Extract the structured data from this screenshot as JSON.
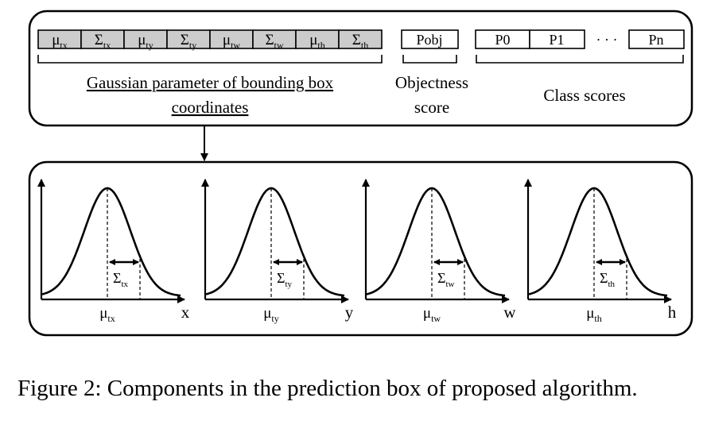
{
  "vector": {
    "cells": [
      {
        "sym": "μ",
        "sub": "tx"
      },
      {
        "sym": "Σ",
        "sub": "tx"
      },
      {
        "sym": "μ",
        "sub": "ty"
      },
      {
        "sym": "Σ",
        "sub": "ty"
      },
      {
        "sym": "μ",
        "sub": "tw"
      },
      {
        "sym": "Σ",
        "sub": "tw"
      },
      {
        "sym": "μ",
        "sub": "th"
      },
      {
        "sym": "Σ",
        "sub": "th"
      }
    ],
    "objectness_cell": "Pobj",
    "class_cells": [
      "P0",
      "P1",
      "Pn"
    ],
    "ellipsis": "· · ·",
    "cell_fill": "#cccccc"
  },
  "labels": {
    "gaussian_line1": "Gaussian parameter of bounding box",
    "gaussian_line2": "coordinates",
    "objectness_line1": "Objectness",
    "objectness_line2": "score",
    "class_scores": "Class scores"
  },
  "plots": [
    {
      "axis": "x",
      "mu": "μ",
      "mu_sub": "tx",
      "sigma": "Σ",
      "sigma_sub": "tx"
    },
    {
      "axis": "y",
      "mu": "μ",
      "mu_sub": "ty",
      "sigma": "Σ",
      "sigma_sub": "ty"
    },
    {
      "axis": "w",
      "mu": "μ",
      "mu_sub": "tw",
      "sigma": "Σ",
      "sigma_sub": "tw"
    },
    {
      "axis": "h",
      "mu": "μ",
      "mu_sub": "th",
      "sigma": "Σ",
      "sigma_sub": "th"
    }
  ],
  "caption": "Figure 2:  Components in the prediction box of proposed algorithm."
}
